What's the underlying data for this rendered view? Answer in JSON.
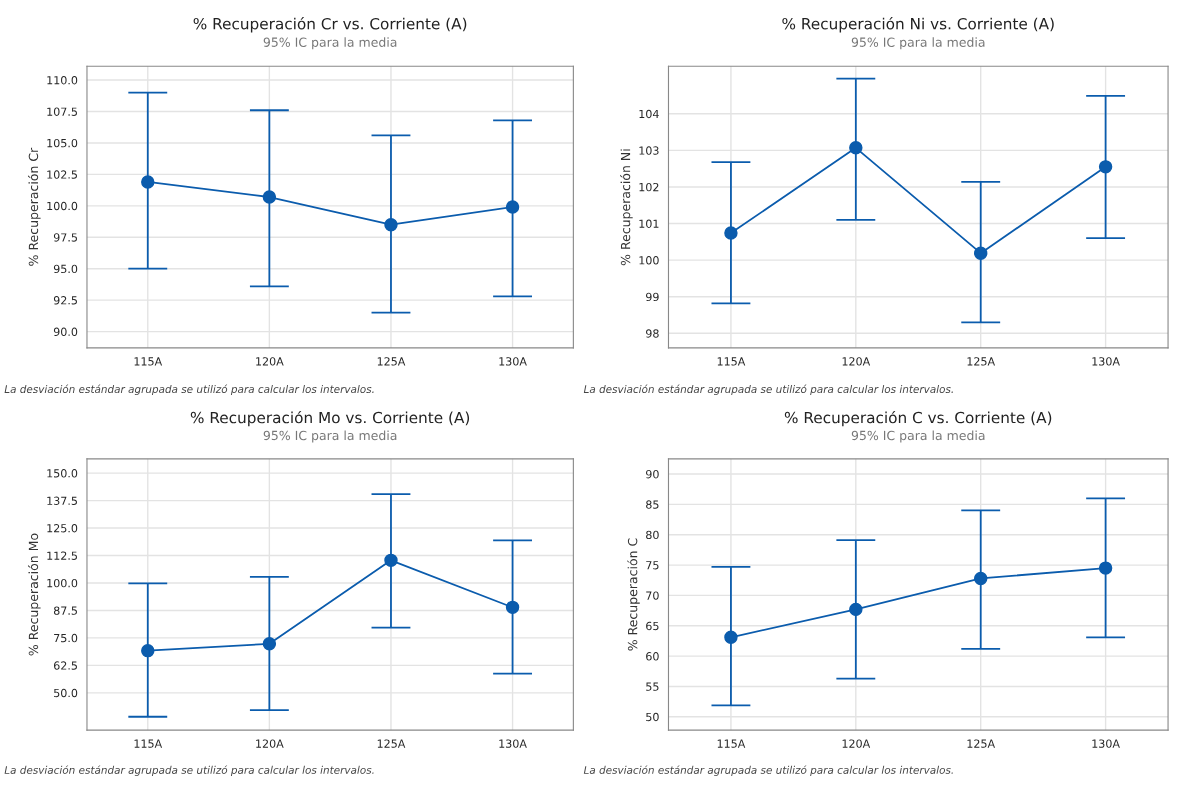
{
  "chart_data": [
    {
      "type": "line",
      "title": "% Recuperación Cr vs. Corriente (A)",
      "subtitle": "95% IC para la media",
      "ylabel": "% Recuperación Cr",
      "categories": [
        "115A",
        "120A",
        "125A",
        "130A"
      ],
      "series": [
        {
          "color": "#0b5cad",
          "values": [
            101.9,
            100.7,
            98.5,
            99.9
          ],
          "errors": [
            [
              95.0,
              109.0
            ],
            [
              93.6,
              107.6
            ],
            [
              91.5,
              105.6
            ],
            [
              92.8,
              106.8
            ]
          ]
        }
      ],
      "ylim": [
        88.7,
        111.1
      ],
      "yticks": [
        {
          "value": 90,
          "label": "90.0"
        },
        {
          "value": 92.5,
          "label": "92.5"
        },
        {
          "value": 95,
          "label": "95.0"
        },
        {
          "value": 97.5,
          "label": "97.5"
        },
        {
          "value": 100,
          "label": "100.0"
        },
        {
          "value": 102.5,
          "label": "102.5"
        },
        {
          "value": 105,
          "label": "105.0"
        },
        {
          "value": 107.5,
          "label": "107.5"
        },
        {
          "value": 110,
          "label": "110.0"
        }
      ],
      "grid": true,
      "marker": "circle",
      "line_style": "solid",
      "annotations": [
        "La desviación estándar agrupada se utilizó para calcular los intervalos."
      ]
    },
    {
      "type": "line",
      "title": "% Recuperación Ni vs. Corriente (A)",
      "subtitle": "95% IC para la media",
      "ylabel": "% Recuperación Ni",
      "categories": [
        "115A",
        "120A",
        "125A",
        "130A"
      ],
      "series": [
        {
          "color": "#0b5cad",
          "values": [
            100.74,
            103.07,
            100.19,
            102.55
          ],
          "errors": [
            [
              98.82,
              102.68
            ],
            [
              101.1,
              104.96
            ],
            [
              98.3,
              102.14
            ],
            [
              100.6,
              104.49
            ]
          ]
        }
      ],
      "ylim": [
        97.6,
        105.3
      ],
      "yticks": [
        98,
        99,
        100,
        101,
        102,
        103,
        104
      ],
      "grid": true,
      "marker": "circle",
      "line_style": "solid",
      "annotations": [
        "La desviación estándar agrupada se utilizó para calcular los intervalos."
      ]
    },
    {
      "type": "line",
      "title": "% Recuperación Mo vs. Corriente (A)",
      "subtitle": "95% IC para la media",
      "ylabel": "% Recuperación Mo",
      "categories": [
        "115A",
        "120A",
        "125A",
        "130A"
      ],
      "series": [
        {
          "color": "#0b5cad",
          "values": [
            69.2,
            72.3,
            110.3,
            88.9
          ],
          "errors": [
            [
              39.1,
              99.8
            ],
            [
              42.1,
              102.8
            ],
            [
              79.7,
              140.4
            ],
            [
              58.7,
              119.4
            ]
          ]
        }
      ],
      "ylim": [
        33,
        156.5
      ],
      "yticks": [
        {
          "value": 50,
          "label": "50.0"
        },
        {
          "value": 62.5,
          "label": "62.5"
        },
        {
          "value": 75,
          "label": "75.0"
        },
        {
          "value": 87.5,
          "label": "87.5"
        },
        {
          "value": 100,
          "label": "100.0"
        },
        {
          "value": 112.5,
          "label": "112.5"
        },
        {
          "value": 125,
          "label": "125.0"
        },
        {
          "value": 137.5,
          "label": "137.5"
        },
        {
          "value": 150,
          "label": "150.0"
        }
      ],
      "grid": true,
      "marker": "circle",
      "line_style": "solid",
      "annotations": [
        "La desviación estándar agrupada se utilizó para calcular los intervalos."
      ]
    },
    {
      "type": "line",
      "title": "% Recuperación C vs. Corriente (A)",
      "subtitle": "95% IC para la media",
      "ylabel": "% Recuperación C",
      "categories": [
        "115A",
        "120A",
        "125A",
        "130A"
      ],
      "series": [
        {
          "color": "#0b5cad",
          "values": [
            63.1,
            67.7,
            72.8,
            74.5
          ],
          "errors": [
            [
              51.9,
              74.7
            ],
            [
              56.3,
              79.1
            ],
            [
              61.2,
              84.0
            ],
            [
              63.1,
              86.0
            ]
          ]
        }
      ],
      "ylim": [
        47.8,
        92.5
      ],
      "yticks": [
        50,
        55,
        60,
        65,
        70,
        75,
        80,
        85,
        90
      ],
      "grid": true,
      "marker": "circle",
      "line_style": "solid",
      "annotations": [
        "La desviación estándar agrupada se utilizó para calcular los intervalos."
      ]
    }
  ]
}
